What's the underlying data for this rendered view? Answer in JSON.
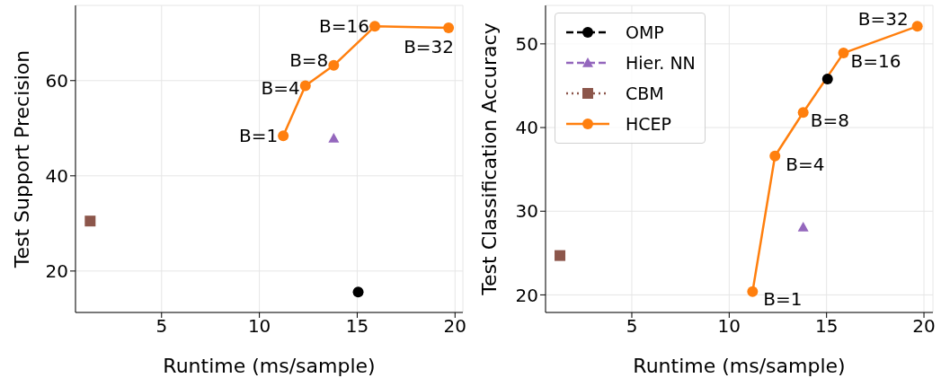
{
  "chart_data": [
    {
      "type": "line",
      "xlabel": "Runtime (ms/sample)",
      "ylabel": "Test Support Precision",
      "xlim": [
        0.6,
        20.4
      ],
      "xticks": [
        5,
        10,
        15,
        20
      ],
      "ylim": [
        11.3,
        75.8
      ],
      "yticks": [
        20,
        40,
        60
      ],
      "grid": true,
      "legend": false,
      "series": [
        {
          "color": "#000000",
          "marker": "circle",
          "line_style": "dashed",
          "x": [
            15.05
          ],
          "values": [
            15.6
          ]
        },
        {
          "color": "#9467bd",
          "marker": "triangle",
          "line_style": "dashed",
          "x": [
            13.8
          ],
          "values": [
            47.9
          ]
        },
        {
          "color": "#8c564b",
          "marker": "square",
          "line_style": "dotted",
          "x": [
            1.35
          ],
          "values": [
            30.5
          ]
        },
        {
          "color": "#ff7f0e",
          "marker": "circle",
          "line_style": "solid",
          "x": [
            11.22,
            12.35,
            13.8,
            15.9,
            19.67
          ],
          "values": [
            48.4,
            58.9,
            63.2,
            71.4,
            71.1
          ]
        }
      ],
      "annotations": [
        {
          "text": "B=1",
          "x": 11.22,
          "y": 48.4
        },
        {
          "text": "B=4",
          "x": 12.35,
          "y": 58.9
        },
        {
          "text": "B=8",
          "x": 13.8,
          "y": 63.2
        },
        {
          "text": "B=16",
          "x": 15.9,
          "y": 71.4
        },
        {
          "text": "B=32",
          "x": 19.67,
          "y": 71.1
        }
      ]
    },
    {
      "type": "line",
      "xlabel": "Runtime (ms/sample)",
      "ylabel": "Test Classification Accuracy",
      "xlim": [
        0.57,
        20.46
      ],
      "xticks": [
        5,
        10,
        15,
        20
      ],
      "ylim": [
        17.9,
        54.6
      ],
      "yticks": [
        20,
        30,
        40,
        50
      ],
      "grid": true,
      "legend": "top left",
      "series": [
        {
          "name": "OMP",
          "color": "#000000",
          "marker": "circle",
          "line_style": "dashed",
          "x": [
            15.05
          ],
          "values": [
            45.8
          ]
        },
        {
          "name": "Hier. NN",
          "color": "#9467bd",
          "marker": "triangle",
          "line_style": "dashed",
          "x": [
            13.8
          ],
          "values": [
            28.1
          ]
        },
        {
          "name": "CBM",
          "color": "#8c564b",
          "marker": "square",
          "line_style": "dotted",
          "x": [
            1.31
          ],
          "values": [
            24.7
          ]
        },
        {
          "name": "HCEP",
          "color": "#ff7f0e",
          "marker": "circle",
          "line_style": "solid",
          "x": [
            11.2,
            12.35,
            13.8,
            15.87,
            19.66
          ],
          "values": [
            20.4,
            36.6,
            41.8,
            48.9,
            52.1
          ]
        }
      ],
      "annotations": [
        {
          "text": "B=1",
          "x": 11.2,
          "y": 20.4
        },
        {
          "text": "B=4",
          "x": 12.35,
          "y": 36.6
        },
        {
          "text": "B=8",
          "x": 13.8,
          "y": 41.8
        },
        {
          "text": "B=16",
          "x": 15.87,
          "y": 48.9
        },
        {
          "text": "B=32",
          "x": 19.66,
          "y": 52.1
        }
      ]
    }
  ]
}
